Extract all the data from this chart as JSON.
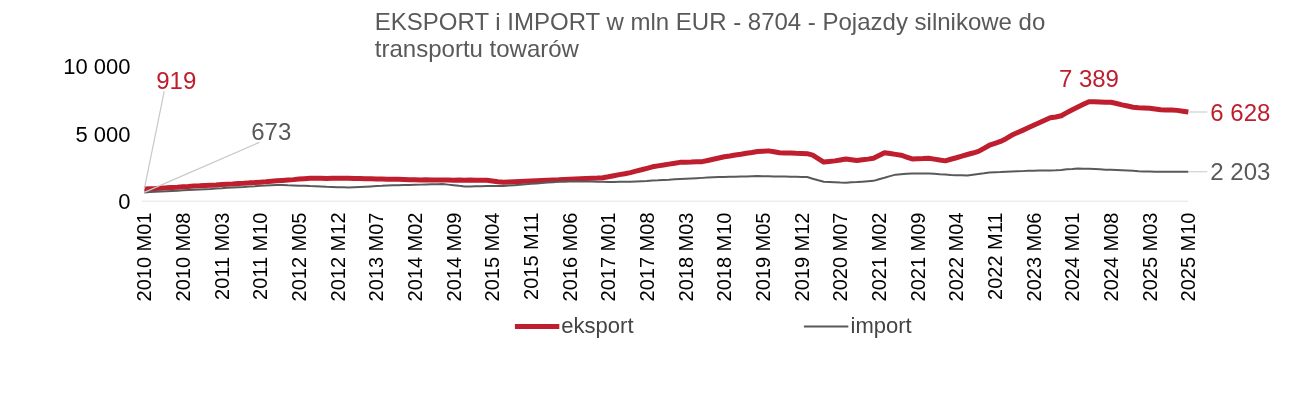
{
  "chart_data": {
    "type": "line",
    "title": "EKSPORT i IMPORT w mln EUR - 8704 - Pojazdy silnikowe do transportu towarów",
    "categories": [
      "2010 M01",
      null,
      null,
      null,
      null,
      null,
      null,
      "2010 M08",
      null,
      null,
      null,
      null,
      null,
      null,
      "2011 M03",
      null,
      null,
      null,
      null,
      null,
      null,
      "2011 M10",
      null,
      null,
      null,
      null,
      null,
      null,
      "2012 M05",
      null,
      null,
      null,
      null,
      null,
      null,
      "2012 M12",
      null,
      null,
      null,
      null,
      null,
      null,
      "2013 M07",
      null,
      null,
      null,
      null,
      null,
      null,
      "2014 M02",
      null,
      null,
      null,
      null,
      null,
      null,
      "2014 M09",
      null,
      null,
      null,
      null,
      null,
      null,
      "2015 M04",
      null,
      null,
      null,
      null,
      null,
      null,
      "2015 M11",
      null,
      null,
      null,
      null,
      null,
      null,
      "2016 M06",
      null,
      null,
      null,
      null,
      null,
      null,
      "2017 M01",
      null,
      null,
      null,
      null,
      null,
      null,
      "2017 M08",
      null,
      null,
      null,
      null,
      null,
      null,
      "2018 M03",
      null,
      null,
      null,
      null,
      null,
      null,
      "2018 M10",
      null,
      null,
      null,
      null,
      null,
      null,
      "2019 M05",
      null,
      null,
      null,
      null,
      null,
      null,
      "2019 M12",
      null,
      null,
      null,
      null,
      null,
      null,
      "2020 M07",
      null,
      null,
      null,
      null,
      null,
      null,
      "2021 M02",
      null,
      null,
      null,
      null,
      null,
      null,
      "2021 M09",
      null,
      null,
      null,
      null,
      null,
      null,
      "2022 M04",
      null,
      null,
      null,
      null,
      null,
      null,
      "2022 M11",
      null,
      null,
      null,
      null,
      null,
      null,
      "2023 M06",
      null,
      null,
      null,
      null,
      null,
      null,
      "2024 M01",
      null,
      null,
      null,
      null,
      null,
      null,
      "2024 M08",
      null,
      null,
      null,
      null,
      null,
      null,
      "2025 M03",
      null,
      null,
      null,
      null,
      null,
      null,
      "2025 M10"
    ],
    "ylim": [
      0,
      10000
    ],
    "yticks": [
      0,
      {
        "value": 5000,
        "label": "5 000"
      },
      {
        "value": 10000,
        "label": "10 000"
      }
    ],
    "legend": "bottom",
    "series": [
      {
        "name": "eksport",
        "color": "#be1e2d",
        "values": [
          919,
          940,
          960,
          990,
          1010,
          1040,
          1060,
          1090,
          1110,
          1140,
          1160,
          1190,
          1210,
          1230,
          1260,
          1280,
          1300,
          1330,
          1350,
          1380,
          1400,
          1430,
          1460,
          1500,
          1530,
          1560,
          1590,
          1620,
          1660,
          1690,
          1720,
          1720,
          1730,
          1710,
          1720,
          1730,
          1720,
          1720,
          1710,
          1700,
          1690,
          1680,
          1670,
          1660,
          1650,
          1650,
          1640,
          1630,
          1620,
          1610,
          1600,
          1610,
          1600,
          1590,
          1600,
          1590,
          1580,
          1590,
          1580,
          1590,
          1580,
          1580,
          1580,
          1520,
          1460,
          1420,
          1440,
          1460,
          1480,
          1500,
          1520,
          1540,
          1560,
          1580,
          1600,
          1610,
          1630,
          1650,
          1670,
          1690,
          1710,
          1730,
          1740,
          1760,
          1830,
          1910,
          1990,
          2060,
          2140,
          2250,
          2350,
          2460,
          2570,
          2640,
          2700,
          2770,
          2830,
          2900,
          2910,
          2920,
          2940,
          2950,
          3040,
          3130,
          3220,
          3310,
          3370,
          3440,
          3500,
          3570,
          3630,
          3700,
          3730,
          3750,
          3680,
          3610,
          3600,
          3590,
          3570,
          3560,
          3540,
          3430,
          3180,
          2920,
          2970,
          3010,
          3080,
          3150,
          3090,
          3030,
          3090,
          3140,
          3200,
          3400,
          3610,
          3550,
          3490,
          3430,
          3290,
          3150,
          3170,
          3180,
          3200,
          3140,
          3070,
          3010,
          3130,
          3240,
          3360,
          3480,
          3590,
          3710,
          3940,
          4170,
          4310,
          4450,
          4650,
          4900,
          5090,
          5270,
          5460,
          5650,
          5830,
          6020,
          6200,
          6260,
          6350,
          6580,
          6800,
          7000,
          7200,
          7389,
          7380,
          7370,
          7360,
          7350,
          7260,
          7160,
          7070,
          6980,
          6950,
          6930,
          6900,
          6850,
          6800,
          6780,
          6770,
          6750,
          6690,
          6628
        ],
        "value_labels": [
          "919",
          null,
          null,
          null,
          null,
          null,
          null,
          null,
          null,
          null,
          null,
          null,
          null,
          null,
          null,
          null,
          null,
          null,
          null,
          null,
          null,
          null,
          null,
          null,
          null,
          null,
          null,
          null,
          null,
          null,
          null,
          null,
          null,
          null,
          null,
          null,
          null,
          null,
          null,
          null,
          null,
          null,
          null,
          null,
          null,
          null,
          null,
          null,
          null,
          null,
          null,
          null,
          null,
          null,
          null,
          null,
          null,
          null,
          null,
          null,
          null,
          null,
          null,
          null,
          null,
          null,
          null,
          null,
          null,
          null,
          null,
          null,
          null,
          null,
          null,
          null,
          null,
          null,
          null,
          null,
          null,
          null,
          null,
          null,
          null,
          null,
          null,
          null,
          null,
          null,
          null,
          null,
          null,
          null,
          null,
          null,
          null,
          null,
          null,
          null,
          null,
          null,
          null,
          null,
          null,
          null,
          null,
          null,
          null,
          null,
          null,
          null,
          null,
          null,
          null,
          null,
          null,
          null,
          null,
          null,
          null,
          null,
          null,
          null,
          null,
          null,
          null,
          null,
          null,
          null,
          null,
          null,
          null,
          null,
          null,
          null,
          null,
          null,
          null,
          null,
          null,
          null,
          null,
          null,
          null,
          null,
          null,
          null,
          null,
          null,
          null,
          null,
          null,
          null,
          null,
          null,
          null,
          null,
          null,
          null,
          null,
          null,
          null,
          null,
          null,
          null,
          null,
          null,
          null,
          null,
          null,
          "7 389",
          null,
          null,
          null,
          null,
          null,
          null,
          null,
          null,
          null,
          null,
          null,
          null,
          null,
          null,
          null,
          null,
          null,
          "6 628"
        ]
      },
      {
        "name": "import",
        "color": "#595959",
        "values": [
          673,
          700,
          720,
          740,
          760,
          780,
          800,
          830,
          850,
          870,
          890,
          910,
          930,
          960,
          980,
          1010,
          1030,
          1060,
          1080,
          1110,
          1130,
          1160,
          1180,
          1210,
          1230,
          1220,
          1200,
          1190,
          1170,
          1160,
          1140,
          1130,
          1110,
          1090,
          1080,
          1060,
          1050,
          1040,
          1060,
          1080,
          1100,
          1120,
          1140,
          1160,
          1190,
          1200,
          1210,
          1220,
          1230,
          1240,
          1250,
          1260,
          1270,
          1280,
          1290,
          1250,
          1210,
          1160,
          1120,
          1120,
          1130,
          1130,
          1140,
          1140,
          1150,
          1150,
          1180,
          1210,
          1240,
          1270,
          1310,
          1340,
          1370,
          1400,
          1430,
          1460,
          1470,
          1480,
          1480,
          1490,
          1490,
          1480,
          1470,
          1460,
          1450,
          1450,
          1460,
          1460,
          1460,
          1480,
          1500,
          1520,
          1550,
          1570,
          1600,
          1620,
          1650,
          1670,
          1690,
          1710,
          1730,
          1750,
          1770,
          1790,
          1810,
          1820,
          1830,
          1840,
          1850,
          1860,
          1870,
          1880,
          1870,
          1870,
          1860,
          1850,
          1850,
          1840,
          1830,
          1820,
          1810,
          1690,
          1570,
          1460,
          1440,
          1420,
          1400,
          1390,
          1420,
          1440,
          1470,
          1500,
          1530,
          1650,
          1760,
          1880,
          1990,
          2020,
          2050,
          2080,
          2080,
          2080,
          2080,
          2050,
          2020,
          2000,
          1970,
          1950,
          1940,
          1920,
          1980,
          2040,
          2090,
          2150,
          2170,
          2180,
          2200,
          2220,
          2240,
          2250,
          2270,
          2280,
          2290,
          2290,
          2300,
          2310,
          2340,
          2380,
          2410,
          2450,
          2430,
          2420,
          2400,
          2380,
          2360,
          2350,
          2330,
          2310,
          2290,
          2270,
          2240,
          2220,
          2220,
          2210,
          2210,
          2200,
          2210,
          2200,
          2200,
          2203
        ],
        "value_labels": [
          "673",
          null,
          null,
          null,
          null,
          null,
          null,
          null,
          null,
          null,
          null,
          null,
          null,
          null,
          null,
          null,
          null,
          null,
          null,
          null,
          null,
          null,
          null,
          null,
          null,
          null,
          null,
          null,
          null,
          null,
          null,
          null,
          null,
          null,
          null,
          null,
          null,
          null,
          null,
          null,
          null,
          null,
          null,
          null,
          null,
          null,
          null,
          null,
          null,
          null,
          null,
          null,
          null,
          null,
          null,
          null,
          null,
          null,
          null,
          null,
          null,
          null,
          null,
          null,
          null,
          null,
          null,
          null,
          null,
          null,
          null,
          null,
          null,
          null,
          null,
          null,
          null,
          null,
          null,
          null,
          null,
          null,
          null,
          null,
          null,
          null,
          null,
          null,
          null,
          null,
          null,
          null,
          null,
          null,
          null,
          null,
          null,
          null,
          null,
          null,
          null,
          null,
          null,
          null,
          null,
          null,
          null,
          null,
          null,
          null,
          null,
          null,
          null,
          null,
          null,
          null,
          null,
          null,
          null,
          null,
          null,
          null,
          null,
          null,
          null,
          null,
          null,
          null,
          null,
          null,
          null,
          null,
          null,
          null,
          null,
          null,
          null,
          null,
          null,
          null,
          null,
          null,
          null,
          null,
          null,
          null,
          null,
          null,
          null,
          null,
          null,
          null,
          null,
          null,
          null,
          null,
          null,
          null,
          null,
          null,
          null,
          null,
          null,
          null,
          null,
          null,
          null,
          null,
          null,
          null,
          null,
          null,
          null,
          null,
          null,
          null,
          null,
          null,
          null,
          null,
          null,
          null,
          null,
          null,
          null,
          null,
          null,
          null,
          null,
          "2 203"
        ]
      }
    ]
  }
}
